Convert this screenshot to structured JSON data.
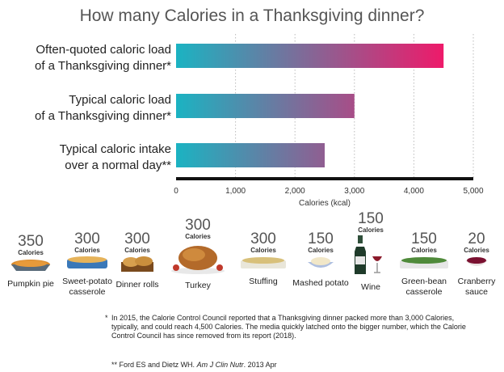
{
  "chart_data": {
    "type": "bar",
    "orientation": "horizontal",
    "title": "How many Calories in a Thanksgiving dinner?",
    "categories": [
      [
        "Often-quoted caloric load",
        "of a Thanksgiving dinner*"
      ],
      [
        "Typical caloric load",
        "of a Thanksgiving dinner*"
      ],
      [
        "Typical caloric intake",
        "over a normal day**"
      ]
    ],
    "values": [
      4500,
      3000,
      2500
    ],
    "xlabel": "Calories (kcal)",
    "xlim": [
      0,
      5000
    ],
    "ticks": [
      "0",
      "1,000",
      "2,000",
      "3,000",
      "4,000",
      "5,000"
    ],
    "tick_values": [
      0,
      1000,
      2000,
      3000,
      4000,
      5000
    ],
    "grid": "vertical dotted",
    "colors": {
      "bar_start": "#1bb3c2",
      "bar_end": "#ee1a6a",
      "axis": "#111111"
    }
  },
  "foods": [
    {
      "value": "350",
      "unit": "Calories",
      "name": [
        "Pumpkin pie"
      ],
      "icon": "pumpkin-pie-icon"
    },
    {
      "value": "300",
      "unit": "Calories",
      "name": [
        "Sweet-potato",
        "casserole"
      ],
      "icon": "sweet-potato-casserole-icon"
    },
    {
      "value": "300",
      "unit": "Calories",
      "name": [
        "Dinner rolls"
      ],
      "icon": "dinner-rolls-icon"
    },
    {
      "value": "300",
      "unit": "Calories",
      "name": [
        "Turkey"
      ],
      "icon": "turkey-icon"
    },
    {
      "value": "300",
      "unit": "Calories",
      "name": [
        "Stuffing"
      ],
      "icon": "stuffing-icon"
    },
    {
      "value": "150",
      "unit": "Calories",
      "name": [
        "Mashed potato"
      ],
      "icon": "mashed-potato-icon"
    },
    {
      "value": "150",
      "unit": "Calories",
      "name": [
        "Wine"
      ],
      "icon": "wine-icon"
    },
    {
      "value": "150",
      "unit": "Calories",
      "name": [
        "Green-bean",
        "casserole"
      ],
      "icon": "green-bean-casserole-icon"
    },
    {
      "value": "20",
      "unit": "Calories",
      "name": [
        "Cranberry",
        "sauce"
      ],
      "icon": "cranberry-sauce-icon"
    }
  ],
  "notes": {
    "star1_marker": "*",
    "star1": "In 2015, the Calorie Control Council reported that a Thanksgiving dinner packed more than 3,000 Calories, typically, and could reach 4,500 Calories. The media quickly latched onto the bigger number, which the Calorie Control Council has since removed from its report (2018).",
    "star2_marker": "**",
    "star2_plain": "Ford ES and Dietz WH.",
    "star2_italic": "Am J Clin Nutr",
    "star2_tail": ". 2013 Apr"
  }
}
